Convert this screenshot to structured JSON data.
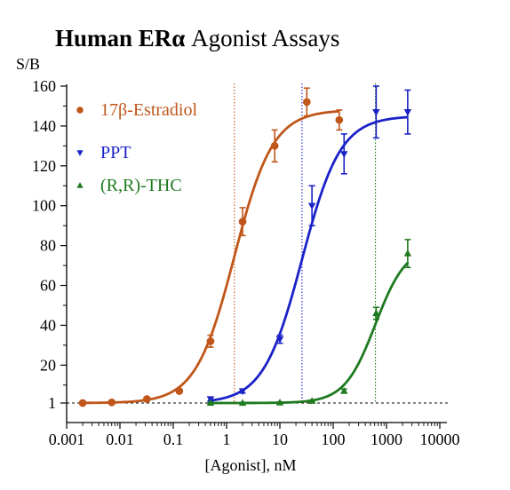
{
  "chart_data": {
    "type": "scatter",
    "title_bold": "Human ERα",
    "title_rest": " Agonist Assays",
    "ylabel": "S/B",
    "xlabel": "[Agonist], nM",
    "xscale": "log",
    "xlim": [
      0.001,
      10000
    ],
    "ylim": [
      0,
      160
    ],
    "x_ticks": [
      "0.001",
      "0.01",
      "0.1",
      "1",
      "10",
      "100",
      "1000",
      "10000"
    ],
    "x_tick_values": [
      0.001,
      0.01,
      0.1,
      1,
      10,
      100,
      1000,
      10000
    ],
    "y_ticks": [
      "1",
      "20",
      "40",
      "60",
      "80",
      "100",
      "120",
      "140",
      "160"
    ],
    "y_tick_values": [
      1,
      20,
      40,
      60,
      80,
      100,
      120,
      140,
      160
    ],
    "baseline": 1,
    "legend_position": "top-left",
    "series": [
      {
        "name": "17β-Estradiol",
        "color": "#c0561a",
        "marker": "circle",
        "ec50": 1.4,
        "fit": {
          "bottom": 1,
          "top": 148,
          "ec50": 1.4,
          "hill": 1.2
        },
        "points": [
          {
            "x": 0.002,
            "y": 1,
            "err": 0.5
          },
          {
            "x": 0.007,
            "y": 1.3,
            "err": 0.5
          },
          {
            "x": 0.032,
            "y": 3,
            "err": 0.8
          },
          {
            "x": 0.13,
            "y": 7,
            "err": 1
          },
          {
            "x": 0.5,
            "y": 32,
            "err": 3
          },
          {
            "x": 2,
            "y": 92,
            "err": 7
          },
          {
            "x": 8,
            "y": 130,
            "err": 8
          },
          {
            "x": 32,
            "y": 152,
            "err": 7
          },
          {
            "x": 130,
            "y": 143,
            "err": 5
          }
        ]
      },
      {
        "name": "PPT",
        "color": "#1a22c8",
        "marker": "triangle-down",
        "ec50": 26,
        "fit": {
          "bottom": 1,
          "top": 145,
          "ec50": 26,
          "hill": 1.2
        },
        "points": [
          {
            "x": 0.5,
            "y": 3,
            "err": 1
          },
          {
            "x": 2,
            "y": 7,
            "err": 1
          },
          {
            "x": 10,
            "y": 33,
            "err": 2
          },
          {
            "x": 40,
            "y": 100,
            "err": 10
          },
          {
            "x": 160,
            "y": 126,
            "err": 10
          },
          {
            "x": 640,
            "y": 147,
            "err": 13
          },
          {
            "x": 2500,
            "y": 147,
            "err": 11
          }
        ]
      },
      {
        "name": "(R,R)-THC",
        "color": "#1f7a1f",
        "marker": "triangle-up",
        "ec50": 620,
        "fit": {
          "bottom": 1,
          "top": 80,
          "ec50": 620,
          "hill": 1.5
        },
        "points": [
          {
            "x": 0.5,
            "y": 1,
            "err": 0.3
          },
          {
            "x": 2,
            "y": 1,
            "err": 0.3
          },
          {
            "x": 10,
            "y": 1.2,
            "err": 0.3
          },
          {
            "x": 40,
            "y": 2,
            "err": 0.5
          },
          {
            "x": 160,
            "y": 7,
            "err": 1
          },
          {
            "x": 640,
            "y": 46,
            "err": 3
          },
          {
            "x": 2500,
            "y": 76,
            "err": 7
          }
        ]
      }
    ]
  }
}
